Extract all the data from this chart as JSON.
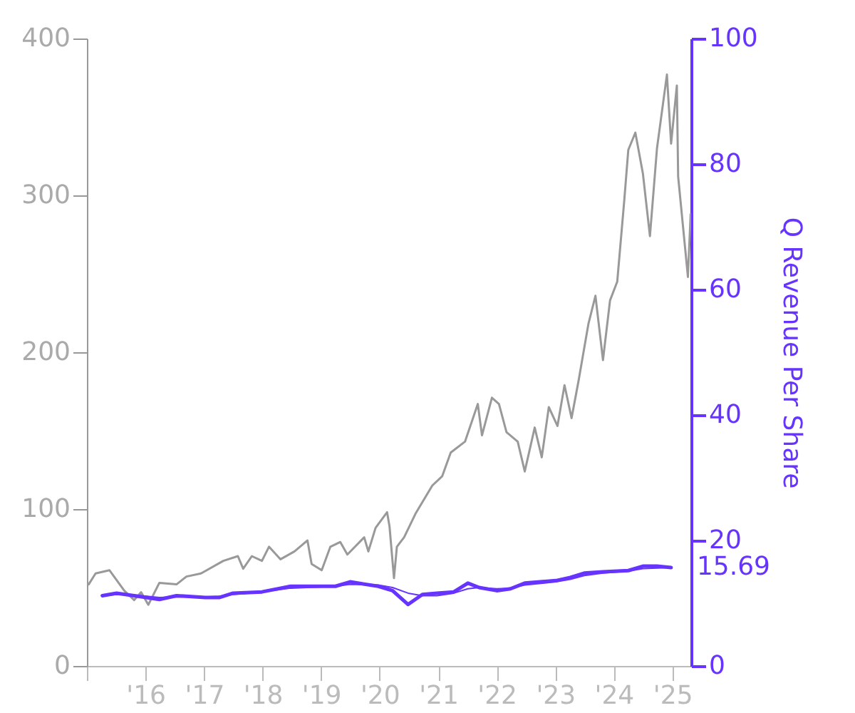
{
  "chart_data": {
    "type": "line",
    "y2label": "Q Revenue Per Share",
    "xlim": [
      "2015-01-01",
      "2025-04-28"
    ],
    "xticks": [
      {
        "value": "2015-01-01",
        "label": null
      },
      {
        "value": "2016-01-01",
        "label": "'16"
      },
      {
        "value": "2017-01-01",
        "label": "'17"
      },
      {
        "value": "2018-01-01",
        "label": "'18"
      },
      {
        "value": "2019-01-01",
        "label": "'19"
      },
      {
        "value": "2020-01-01",
        "label": "'20"
      },
      {
        "value": "2021-01-01",
        "label": "'21"
      },
      {
        "value": "2022-01-01",
        "label": "'22"
      },
      {
        "value": "2023-01-01",
        "label": "'23"
      },
      {
        "value": "2024-01-01",
        "label": "'24"
      },
      {
        "value": "2025-01-01",
        "label": "'25"
      }
    ],
    "ylim": [
      0,
      400
    ],
    "yticks": [
      0,
      100,
      200,
      300,
      400
    ],
    "y2lim": [
      0,
      100
    ],
    "y2ticks": [
      0,
      20,
      40,
      60,
      80,
      100
    ],
    "series": [
      {
        "color": "#999999",
        "x": [
          "2015-01-12",
          "2015-02-24",
          "2015-05-22",
          "2015-08-22",
          "2015-10-23",
          "2015-12-05",
          "2016-01-19",
          "2016-03-28",
          "2016-07-13",
          "2016-09-13",
          "2016-12-13",
          "2017-05-01",
          "2017-07-31",
          "2017-09-02",
          "2017-10-26",
          "2017-12-28",
          "2018-02-10",
          "2018-04-23",
          "2018-07-19",
          "2018-10-08",
          "2018-11-03",
          "2019-01-05",
          "2019-02-28",
          "2019-05-01",
          "2019-06-14",
          "2019-09-27",
          "2019-10-23",
          "2019-12-07",
          "2020-02-17",
          "2020-03-03",
          "2020-03-31",
          "2020-04-18",
          "2020-06-02",
          "2020-08-12",
          "2020-11-25",
          "2021-01-26",
          "2021-03-20",
          "2021-06-17",
          "2021-09-05",
          "2021-10-01",
          "2021-12-02",
          "2022-01-15",
          "2022-03-03",
          "2022-05-12",
          "2022-06-25",
          "2022-08-26",
          "2022-10-09",
          "2022-11-22",
          "2023-01-15",
          "2023-02-28",
          "2023-04-13",
          "2023-05-27",
          "2023-07-27",
          "2023-09-09",
          "2023-10-26",
          "2023-12-09",
          "2024-01-23",
          "2024-03-07",
          "2024-04-01",
          "2024-05-15",
          "2024-07-01",
          "2024-08-14",
          "2024-09-27",
          "2024-11-28",
          "2024-12-24",
          "2025-01-29",
          "2025-02-06",
          "2025-04-08",
          "2025-04-25"
        ],
        "values": [
          52,
          59,
          61,
          48,
          42,
          47,
          39,
          53,
          52,
          57,
          59,
          67,
          70,
          62,
          70,
          67,
          76,
          68,
          73,
          80,
          65,
          61,
          76,
          79,
          71,
          82,
          73,
          88,
          98,
          89,
          56,
          76,
          82,
          97,
          115,
          121,
          136,
          143,
          167,
          147,
          171,
          167,
          149,
          143,
          124,
          152,
          133,
          165,
          153,
          179,
          158,
          182,
          218,
          236,
          195,
          233,
          245,
          297,
          329,
          340,
          314,
          274,
          330,
          377,
          333,
          370,
          312,
          248,
          288
        ]
      },
      {
        "color": "#6633ff",
        "axis": "y2",
        "x": [
          "2015-04-07",
          "2015-07-05",
          "2015-10-23",
          "2016-03-28",
          "2016-07-13",
          "2017-01-08",
          "2017-04-05",
          "2017-07-01",
          "2017-12-28",
          "2018-06-25",
          "2019-04-01",
          "2019-07-01",
          "2019-12-24",
          "2020-03-22",
          "2020-06-27",
          "2020-09-24",
          "2020-12-24",
          "2021-04-08",
          "2021-07-05",
          "2021-09-13",
          "2022-01-01",
          "2022-03-28",
          "2022-06-25",
          "2023-01-05",
          "2023-04-05",
          "2023-07-01",
          "2023-10-26",
          "2024-04-01",
          "2024-07-01",
          "2024-09-27",
          "2024-12-24"
        ],
        "values": [
          11.2,
          11.6,
          11.2,
          10.6,
          11.2,
          10.9,
          10.9,
          11.6,
          11.8,
          12.7,
          12.7,
          13.4,
          12.7,
          12.0,
          9.8,
          11.4,
          11.6,
          11.8,
          13.2,
          12.5,
          12.0,
          12.3,
          13.2,
          13.6,
          14.1,
          14.8,
          15.0,
          15.2,
          15.9,
          15.9,
          15.69
        ],
        "value_labels": [
          null,
          null,
          null,
          null,
          null,
          null,
          null,
          null,
          null,
          null,
          null,
          null,
          null,
          null,
          null,
          null,
          null,
          null,
          null,
          null,
          null,
          null,
          null,
          null,
          null,
          null,
          null,
          null,
          null,
          null,
          "15.69"
        ]
      },
      {
        "color": "#6633ff",
        "axis": "y2",
        "x": [
          "2015-04-07",
          "2015-07-05",
          "2015-10-23",
          "2016-03-28",
          "2016-07-13",
          "2017-01-08",
          "2017-04-05",
          "2017-07-01",
          "2017-12-28",
          "2018-06-25",
          "2019-04-01",
          "2019-07-01",
          "2019-12-24",
          "2020-03-22",
          "2020-06-27",
          "2020-09-24",
          "2020-12-24",
          "2021-04-08",
          "2021-07-05",
          "2021-09-13",
          "2022-01-01",
          "2022-03-28",
          "2022-06-25",
          "2023-01-05",
          "2023-04-05",
          "2023-07-01",
          "2023-10-26",
          "2024-04-01",
          "2024-07-01",
          "2024-09-27",
          "2024-12-24"
        ],
        "values": [
          11.2,
          11.4,
          11.3,
          10.9,
          11.0,
          11.0,
          11.1,
          11.4,
          11.8,
          12.4,
          12.7,
          13.0,
          12.9,
          12.5,
          11.6,
          11.2,
          11.2,
          11.6,
          12.3,
          12.5,
          12.3,
          12.4,
          12.9,
          13.4,
          13.8,
          14.4,
          14.8,
          15.1,
          15.5,
          15.6,
          15.69
        ]
      }
    ]
  }
}
